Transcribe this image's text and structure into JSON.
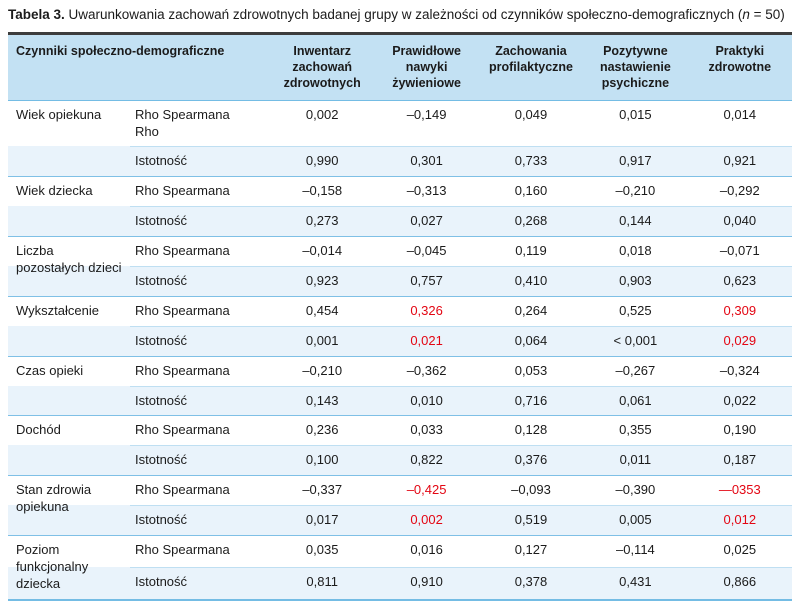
{
  "title": {
    "label": "Tabela 3.",
    "text": " Uwarunkowania zachowań zdrowotnych badanej grupy w zależności od czynników społeczno-demograficznych (",
    "n_var": "n",
    "suffix": " = 50)"
  },
  "colors": {
    "header_bg": "#c3e1f3",
    "stripe_bg": "#e9f3fb",
    "line_blue": "#74bce4",
    "top_rule_dark": "#3d3d3d",
    "significant_red": "#e30613"
  },
  "table": {
    "header": {
      "factor_col": "Czynniki społeczno-demograficzne",
      "value_cols": [
        "Inwentarz zachowań zdrowotnych",
        "Prawidłowe nawyki żywieniowe",
        "Zachowania profilaktyczne",
        "Pozytywne nastawienie psychiczne",
        "Praktyki zdrowotne"
      ]
    },
    "groups": [
      {
        "factor": "Wiek opiekuna",
        "rows": [
          {
            "label": "Rho Spearmana Rho",
            "values": [
              "0,002",
              "–0,149",
              "0,049",
              "0,015",
              "0,014"
            ]
          },
          {
            "label": "Istotność",
            "values": [
              "0,990",
              "0,301",
              "0,733",
              "0,917",
              "0,921"
            ]
          }
        ]
      },
      {
        "factor": "Wiek dziecka",
        "rows": [
          {
            "label": "Rho Spearmana",
            "values": [
              "–0,158",
              "–0,313",
              "0,160",
              "–0,210",
              "–0,292"
            ]
          },
          {
            "label": "Istotność",
            "values": [
              "0,273",
              "0,027",
              "0,268",
              "0,144",
              "0,040"
            ]
          }
        ]
      },
      {
        "factor": "Liczba pozostałych dzieci",
        "rows": [
          {
            "label": "Rho Spearmana",
            "values": [
              "–0,014",
              "–0,045",
              "0,119",
              "0,018",
              "–0,071"
            ]
          },
          {
            "label": "Istotność",
            "values": [
              "0,923",
              "0,757",
              "0,410",
              "0,903",
              "0,623"
            ]
          }
        ]
      },
      {
        "factor": "Wykształcenie",
        "rows": [
          {
            "label": "Rho Spearmana",
            "values": [
              "0,454",
              "0,326",
              "0,264",
              "0,525",
              "0,309"
            ],
            "red": [
              false,
              true,
              false,
              false,
              true
            ]
          },
          {
            "label": "Istotność",
            "values": [
              "0,001",
              "0,021",
              "0,064",
              "< 0,001",
              "0,029"
            ],
            "red": [
              false,
              true,
              false,
              false,
              true
            ]
          }
        ]
      },
      {
        "factor": "Czas opieki",
        "rows": [
          {
            "label": "Rho Spearmana",
            "values": [
              "–0,210",
              "–0,362",
              "0,053",
              "–0,267",
              "–0,324"
            ]
          },
          {
            "label": "Istotność",
            "values": [
              "0,143",
              "0,010",
              "0,716",
              "0,061",
              "0,022"
            ]
          }
        ]
      },
      {
        "factor": "Dochód",
        "rows": [
          {
            "label": "Rho Spearmana",
            "values": [
              "0,236",
              "0,033",
              "0,128",
              "0,355",
              "0,190"
            ]
          },
          {
            "label": "Istotność",
            "values": [
              "0,100",
              "0,822",
              "0,376",
              "0,011",
              "0,187"
            ]
          }
        ]
      },
      {
        "factor": "Stan zdrowia opiekuna",
        "rows": [
          {
            "label": "Rho Spearmana",
            "values": [
              "–0,337",
              "–0,425",
              "–0,093",
              "–0,390",
              "—0353"
            ],
            "red": [
              false,
              true,
              false,
              false,
              true
            ]
          },
          {
            "label": "Istotność",
            "values": [
              "0,017",
              "0,002",
              "0,519",
              "0,005",
              "0,012"
            ],
            "red": [
              false,
              true,
              false,
              false,
              true
            ]
          }
        ]
      },
      {
        "factor": "Poziom funkcjonalny dziecka",
        "rows": [
          {
            "label": "Rho Spearmana",
            "values": [
              "0,035",
              "0,016",
              "0,127",
              "–0,114",
              "0,025"
            ]
          },
          {
            "label": "Istotność",
            "values": [
              "0,811",
              "0,910",
              "0,378",
              "0,431",
              "0,866"
            ]
          }
        ]
      }
    ]
  }
}
